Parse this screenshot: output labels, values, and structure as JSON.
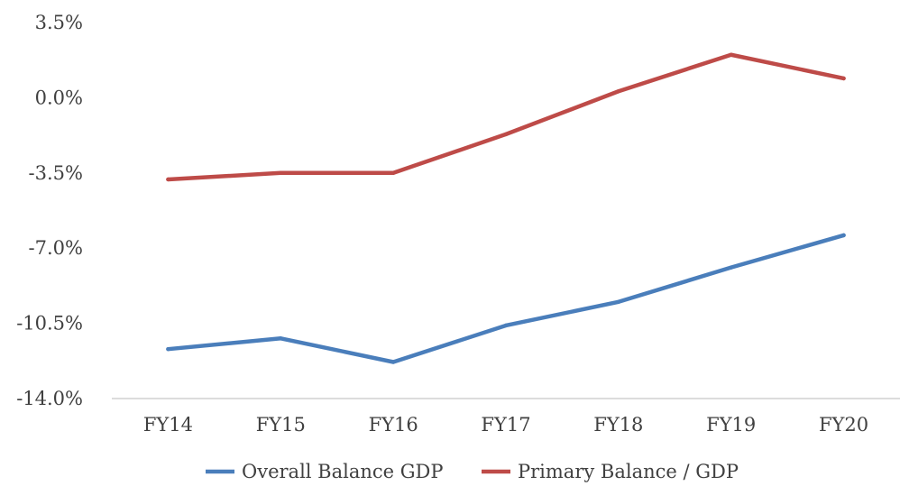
{
  "chart_data": {
    "type": "line",
    "title": "",
    "xlabel": "",
    "ylabel": "",
    "categories": [
      "FY14",
      "FY15",
      "FY16",
      "FY17",
      "FY18",
      "FY19",
      "FY20"
    ],
    "y_ticks": [
      {
        "value": 3.5,
        "label": "3.5%"
      },
      {
        "value": 0.0,
        "label": "0.0%"
      },
      {
        "value": -3.5,
        "label": "-3.5%"
      },
      {
        "value": -7.0,
        "label": "-7.0%"
      },
      {
        "value": -10.5,
        "label": "-10.5%"
      },
      {
        "value": -14.0,
        "label": "-14.0%"
      }
    ],
    "ylim": [
      -14.0,
      3.5
    ],
    "grid": false,
    "legend_position": "bottom",
    "series": [
      {
        "name": "Overall Balance GDP",
        "color": "#4a7ebb",
        "values": [
          -11.7,
          -11.2,
          -12.3,
          -10.6,
          -9.5,
          -7.9,
          -6.4
        ]
      },
      {
        "name": "Primary Balance / GDP",
        "color": "#be4b48",
        "values": [
          -3.8,
          -3.5,
          -3.5,
          -1.7,
          0.3,
          2.0,
          0.9
        ]
      }
    ]
  }
}
